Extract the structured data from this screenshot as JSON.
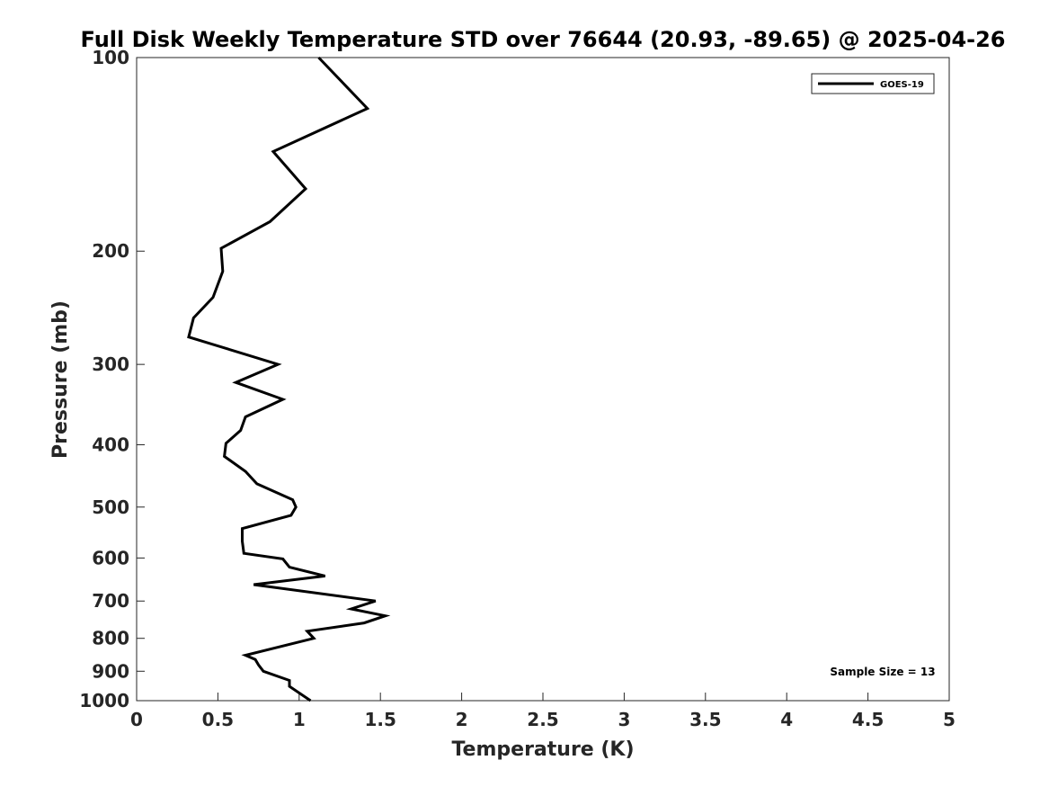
{
  "chart_data": {
    "type": "line",
    "title": "Full Disk Weekly Temperature STD over 76644 (20.93, -89.65) @ 2025-04-26",
    "xlabel": "Temperature (K)",
    "ylabel": "Pressure (mb)",
    "xlim": [
      0,
      5
    ],
    "ylim": [
      100,
      1000
    ],
    "y_scale": "log",
    "y_reversed": true,
    "x_ticks": [
      "0",
      "0.5",
      "1",
      "1.5",
      "2",
      "2.5",
      "3",
      "3.5",
      "4",
      "4.5",
      "5"
    ],
    "x_tick_values": [
      0,
      0.5,
      1,
      1.5,
      2,
      2.5,
      3,
      3.5,
      4,
      4.5,
      5
    ],
    "y_ticks": [
      "100",
      "200",
      "300",
      "400",
      "500",
      "600",
      "700",
      "800",
      "900",
      "1000"
    ],
    "y_tick_values": [
      100,
      200,
      300,
      400,
      500,
      600,
      700,
      800,
      900,
      1000
    ],
    "grid": false,
    "legend_position": "top-right",
    "annotation": "Sample Size = 13",
    "series": [
      {
        "name": "GOES-19",
        "color": "#000000",
        "points": [
          [
            1.12,
            100
          ],
          [
            1.42,
            120
          ],
          [
            0.84,
            140
          ],
          [
            1.04,
            160
          ],
          [
            0.82,
            180
          ],
          [
            0.52,
            198
          ],
          [
            0.53,
            215
          ],
          [
            0.47,
            236
          ],
          [
            0.35,
            254
          ],
          [
            0.32,
            272
          ],
          [
            0.87,
            300
          ],
          [
            0.61,
            320
          ],
          [
            0.9,
            340
          ],
          [
            0.67,
            362
          ],
          [
            0.64,
            380
          ],
          [
            0.55,
            398
          ],
          [
            0.54,
            417
          ],
          [
            0.67,
            440
          ],
          [
            0.74,
            460
          ],
          [
            0.96,
            487
          ],
          [
            0.98,
            500
          ],
          [
            0.95,
            515
          ],
          [
            0.65,
            540
          ],
          [
            0.65,
            565
          ],
          [
            0.66,
            590
          ],
          [
            0.9,
            602
          ],
          [
            0.94,
            620
          ],
          [
            1.16,
            640
          ],
          [
            0.72,
            660
          ],
          [
            1.47,
            700
          ],
          [
            1.32,
            720
          ],
          [
            1.53,
            738
          ],
          [
            1.4,
            757
          ],
          [
            1.05,
            780
          ],
          [
            1.09,
            800
          ],
          [
            0.67,
            850
          ],
          [
            0.73,
            863
          ],
          [
            0.75,
            880
          ],
          [
            0.78,
            900
          ],
          [
            0.94,
            930
          ],
          [
            0.94,
            950
          ],
          [
            1.07,
            1000
          ]
        ]
      }
    ]
  }
}
